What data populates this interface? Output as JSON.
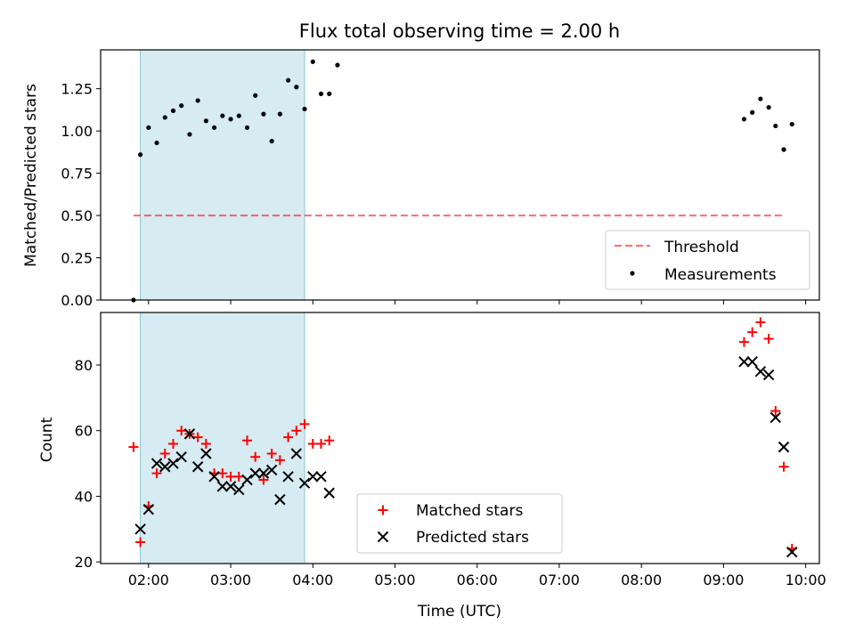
{
  "chart_data": [
    {
      "type": "scatter",
      "title": "Flux total observing time = 2.00 h",
      "ylabel": "Matched/Predicted stars",
      "xlabel": "",
      "ylim": [
        0,
        1.48
      ],
      "xlim": [
        "01:25",
        "10:10"
      ],
      "y_ticks": [
        "0.00",
        "0.25",
        "0.50",
        "0.75",
        "1.00",
        "1.25"
      ],
      "shaded_region": {
        "x_start": "01:54",
        "x_end": "03:54",
        "color": "#add8e6"
      },
      "threshold": {
        "name": "Threshold",
        "value": 0.5,
        "x_start": "01:49",
        "x_end": "09:44",
        "color": "#ff0000"
      },
      "legend": {
        "position": "lower right",
        "entries": [
          "Threshold",
          "Measurements"
        ]
      },
      "series": [
        {
          "name": "Measurements",
          "color": "#000000",
          "marker": "dot",
          "points": [
            [
              "01:49",
              0.0
            ],
            [
              "01:54",
              0.86
            ],
            [
              "02:00",
              1.02
            ],
            [
              "02:06",
              0.93
            ],
            [
              "02:12",
              1.08
            ],
            [
              "02:18",
              1.12
            ],
            [
              "02:24",
              1.15
            ],
            [
              "02:30",
              0.98
            ],
            [
              "02:36",
              1.18
            ],
            [
              "02:42",
              1.06
            ],
            [
              "02:48",
              1.02
            ],
            [
              "02:54",
              1.09
            ],
            [
              "03:00",
              1.07
            ],
            [
              "03:06",
              1.09
            ],
            [
              "03:12",
              1.02
            ],
            [
              "03:18",
              1.21
            ],
            [
              "03:24",
              1.1
            ],
            [
              "03:30",
              0.94
            ],
            [
              "03:36",
              1.1
            ],
            [
              "03:42",
              1.3
            ],
            [
              "03:48",
              1.26
            ],
            [
              "03:54",
              1.13
            ],
            [
              "04:00",
              1.41
            ],
            [
              "04:06",
              1.22
            ],
            [
              "04:12",
              1.22
            ],
            [
              "04:18",
              1.39
            ],
            [
              "09:15",
              1.07
            ],
            [
              "09:21",
              1.11
            ],
            [
              "09:27",
              1.19
            ],
            [
              "09:33",
              1.14
            ],
            [
              "09:38",
              1.03
            ],
            [
              "09:44",
              0.89
            ],
            [
              "09:50",
              1.04
            ]
          ]
        }
      ]
    },
    {
      "type": "scatter",
      "title": "",
      "ylabel": "Count",
      "xlabel": "Time (UTC)",
      "ylim": [
        19.5,
        96
      ],
      "xlim": [
        "01:25",
        "10:10"
      ],
      "y_ticks": [
        "20",
        "40",
        "60",
        "80"
      ],
      "x_ticks": [
        "02:00",
        "03:00",
        "04:00",
        "05:00",
        "06:00",
        "07:00",
        "08:00",
        "09:00",
        "10:00"
      ],
      "shaded_region": {
        "x_start": "01:54",
        "x_end": "03:54",
        "color": "#add8e6"
      },
      "legend": {
        "position": "lower center",
        "entries": [
          "Matched stars",
          "Predicted stars"
        ]
      },
      "series": [
        {
          "name": "Matched stars",
          "color": "#ff0000",
          "marker": "plus",
          "points": [
            [
              "01:49",
              55
            ],
            [
              "01:54",
              26
            ],
            [
              "02:00",
              37
            ],
            [
              "02:06",
              47
            ],
            [
              "02:12",
              53
            ],
            [
              "02:18",
              56
            ],
            [
              "02:24",
              60
            ],
            [
              "02:30",
              59
            ],
            [
              "02:36",
              58
            ],
            [
              "02:42",
              56
            ],
            [
              "02:48",
              47
            ],
            [
              "02:54",
              47
            ],
            [
              "03:00",
              46
            ],
            [
              "03:06",
              46
            ],
            [
              "03:12",
              57
            ],
            [
              "03:18",
              52
            ],
            [
              "03:24",
              45
            ],
            [
              "03:30",
              53
            ],
            [
              "03:36",
              51
            ],
            [
              "03:42",
              58
            ],
            [
              "03:48",
              60
            ],
            [
              "03:54",
              62
            ],
            [
              "04:00",
              56
            ],
            [
              "04:06",
              56
            ],
            [
              "04:12",
              57
            ],
            [
              "09:15",
              87
            ],
            [
              "09:21",
              90
            ],
            [
              "09:27",
              93
            ],
            [
              "09:33",
              88
            ],
            [
              "09:38",
              66
            ],
            [
              "09:44",
              49
            ],
            [
              "09:50",
              24
            ]
          ]
        },
        {
          "name": "Predicted stars",
          "color": "#000000",
          "marker": "x",
          "points": [
            [
              "01:54",
              30
            ],
            [
              "02:00",
              36
            ],
            [
              "02:06",
              50
            ],
            [
              "02:12",
              49
            ],
            [
              "02:18",
              50
            ],
            [
              "02:24",
              52
            ],
            [
              "02:30",
              59
            ],
            [
              "02:36",
              49
            ],
            [
              "02:42",
              53
            ],
            [
              "02:48",
              46
            ],
            [
              "02:54",
              43
            ],
            [
              "03:00",
              43
            ],
            [
              "03:06",
              42
            ],
            [
              "03:12",
              45
            ],
            [
              "03:18",
              47
            ],
            [
              "03:24",
              47
            ],
            [
              "03:30",
              48
            ],
            [
              "03:36",
              39
            ],
            [
              "03:42",
              46
            ],
            [
              "03:48",
              53
            ],
            [
              "03:54",
              44
            ],
            [
              "04:00",
              46
            ],
            [
              "04:06",
              46
            ],
            [
              "04:12",
              41
            ],
            [
              "09:15",
              81
            ],
            [
              "09:21",
              81
            ],
            [
              "09:27",
              78
            ],
            [
              "09:33",
              77
            ],
            [
              "09:38",
              64
            ],
            [
              "09:44",
              55
            ],
            [
              "09:50",
              23
            ]
          ]
        }
      ]
    }
  ]
}
